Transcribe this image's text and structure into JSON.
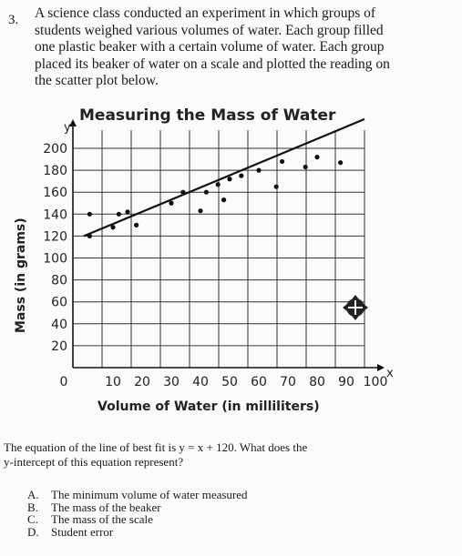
{
  "question": {
    "number": "3.",
    "lines": [
      "A science class conducted an experiment in which groups of",
      "students weighed various volumes of water. Each group filled",
      "one plastic beaker with a certain volume of water. Each group",
      "placed its beaker of water on a scale and plotted the reading on",
      "the scatter plot below."
    ]
  },
  "chart_data": {
    "type": "scatter",
    "title": "Measuring the Mass of Water",
    "xlabel": "Volume of Water (in milliliters)",
    "ylabel": "Mass (in grams)",
    "x_axis_letter": "x",
    "y_axis_letter": "y",
    "xlim": [
      0,
      100
    ],
    "ylim": [
      0,
      200
    ],
    "x_ticks": [
      "0",
      "10",
      "20",
      "30",
      "40",
      "50",
      "60",
      "70",
      "80",
      "90",
      "100"
    ],
    "y_ticks": [
      "20",
      "40",
      "60",
      "80",
      "100",
      "120",
      "140",
      "160",
      "180",
      "200"
    ],
    "grid": true,
    "points": [
      {
        "x": 2,
        "y": 120
      },
      {
        "x": 2,
        "y": 140
      },
      {
        "x": 10,
        "y": 128
      },
      {
        "x": 12,
        "y": 140
      },
      {
        "x": 15,
        "y": 142
      },
      {
        "x": 18,
        "y": 130
      },
      {
        "x": 30,
        "y": 150
      },
      {
        "x": 34,
        "y": 160
      },
      {
        "x": 40,
        "y": 143
      },
      {
        "x": 42,
        "y": 160
      },
      {
        "x": 46,
        "y": 167
      },
      {
        "x": 48,
        "y": 153
      },
      {
        "x": 50,
        "y": 172
      },
      {
        "x": 54,
        "y": 175
      },
      {
        "x": 60,
        "y": 180
      },
      {
        "x": 66,
        "y": 165
      },
      {
        "x": 68,
        "y": 188
      },
      {
        "x": 76,
        "y": 183
      },
      {
        "x": 80,
        "y": 192
      },
      {
        "x": 88,
        "y": 187
      }
    ],
    "line_of_best_fit": {
      "slope": 1,
      "intercept": 120
    }
  },
  "question2": {
    "lines": [
      "The equation of the line of best fit is y = x + 120. What does the",
      "y-intercept of this equation represent?"
    ]
  },
  "choices": [
    {
      "letter": "A.",
      "text": "The minimum volume of water measured"
    },
    {
      "letter": "B.",
      "text": "The mass of the beaker"
    },
    {
      "letter": "C.",
      "text": "The mass of the scale"
    },
    {
      "letter": "D.",
      "text": "Student error"
    }
  ]
}
